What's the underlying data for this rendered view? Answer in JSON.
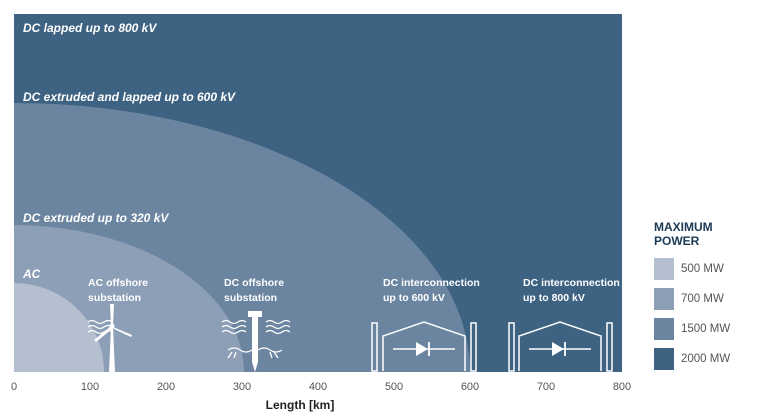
{
  "regions": [
    {
      "label": "DC lapped up to 800 kV",
      "power": "2000 MW",
      "color": "#3d6282"
    },
    {
      "label": "DC extruded and lapped up to 600 kV",
      "power": "1500 MW",
      "color": "#6b84a0"
    },
    {
      "label": "DC extruded up to 320 kV",
      "power": "700 MW",
      "color": "#8d9fb7"
    },
    {
      "label": "AC",
      "power": "500 MW",
      "color": "#b4bfd0"
    }
  ],
  "applications": {
    "ac_offshore": "AC offshore\nsubstation",
    "dc_offshore": "DC offshore\nsubstation",
    "dc_600": "DC interconnection\nup to 600 kV",
    "dc_800": "DC interconnection\nup to 800 kV"
  },
  "axis": {
    "xlabel": "Length [km]",
    "xlim": [
      0,
      800
    ],
    "ticks": [
      "0",
      "100",
      "200",
      "300",
      "400",
      "500",
      "600",
      "700",
      "800"
    ]
  },
  "region_extents_km": [
    800,
    600,
    320,
    120
  ],
  "legend": {
    "title": "MAXIMUM\nPOWER",
    "items": [
      {
        "label": "500 MW",
        "color": "#b4bfd0"
      },
      {
        "label": "700 MW",
        "color": "#8d9fb7"
      },
      {
        "label": "1500 MW",
        "color": "#6b84a0"
      },
      {
        "label": "2000 MW",
        "color": "#3d6282"
      }
    ]
  },
  "colors": {
    "background": "#ffffff",
    "accent": "#3d6282",
    "icon": "#ffffff"
  }
}
